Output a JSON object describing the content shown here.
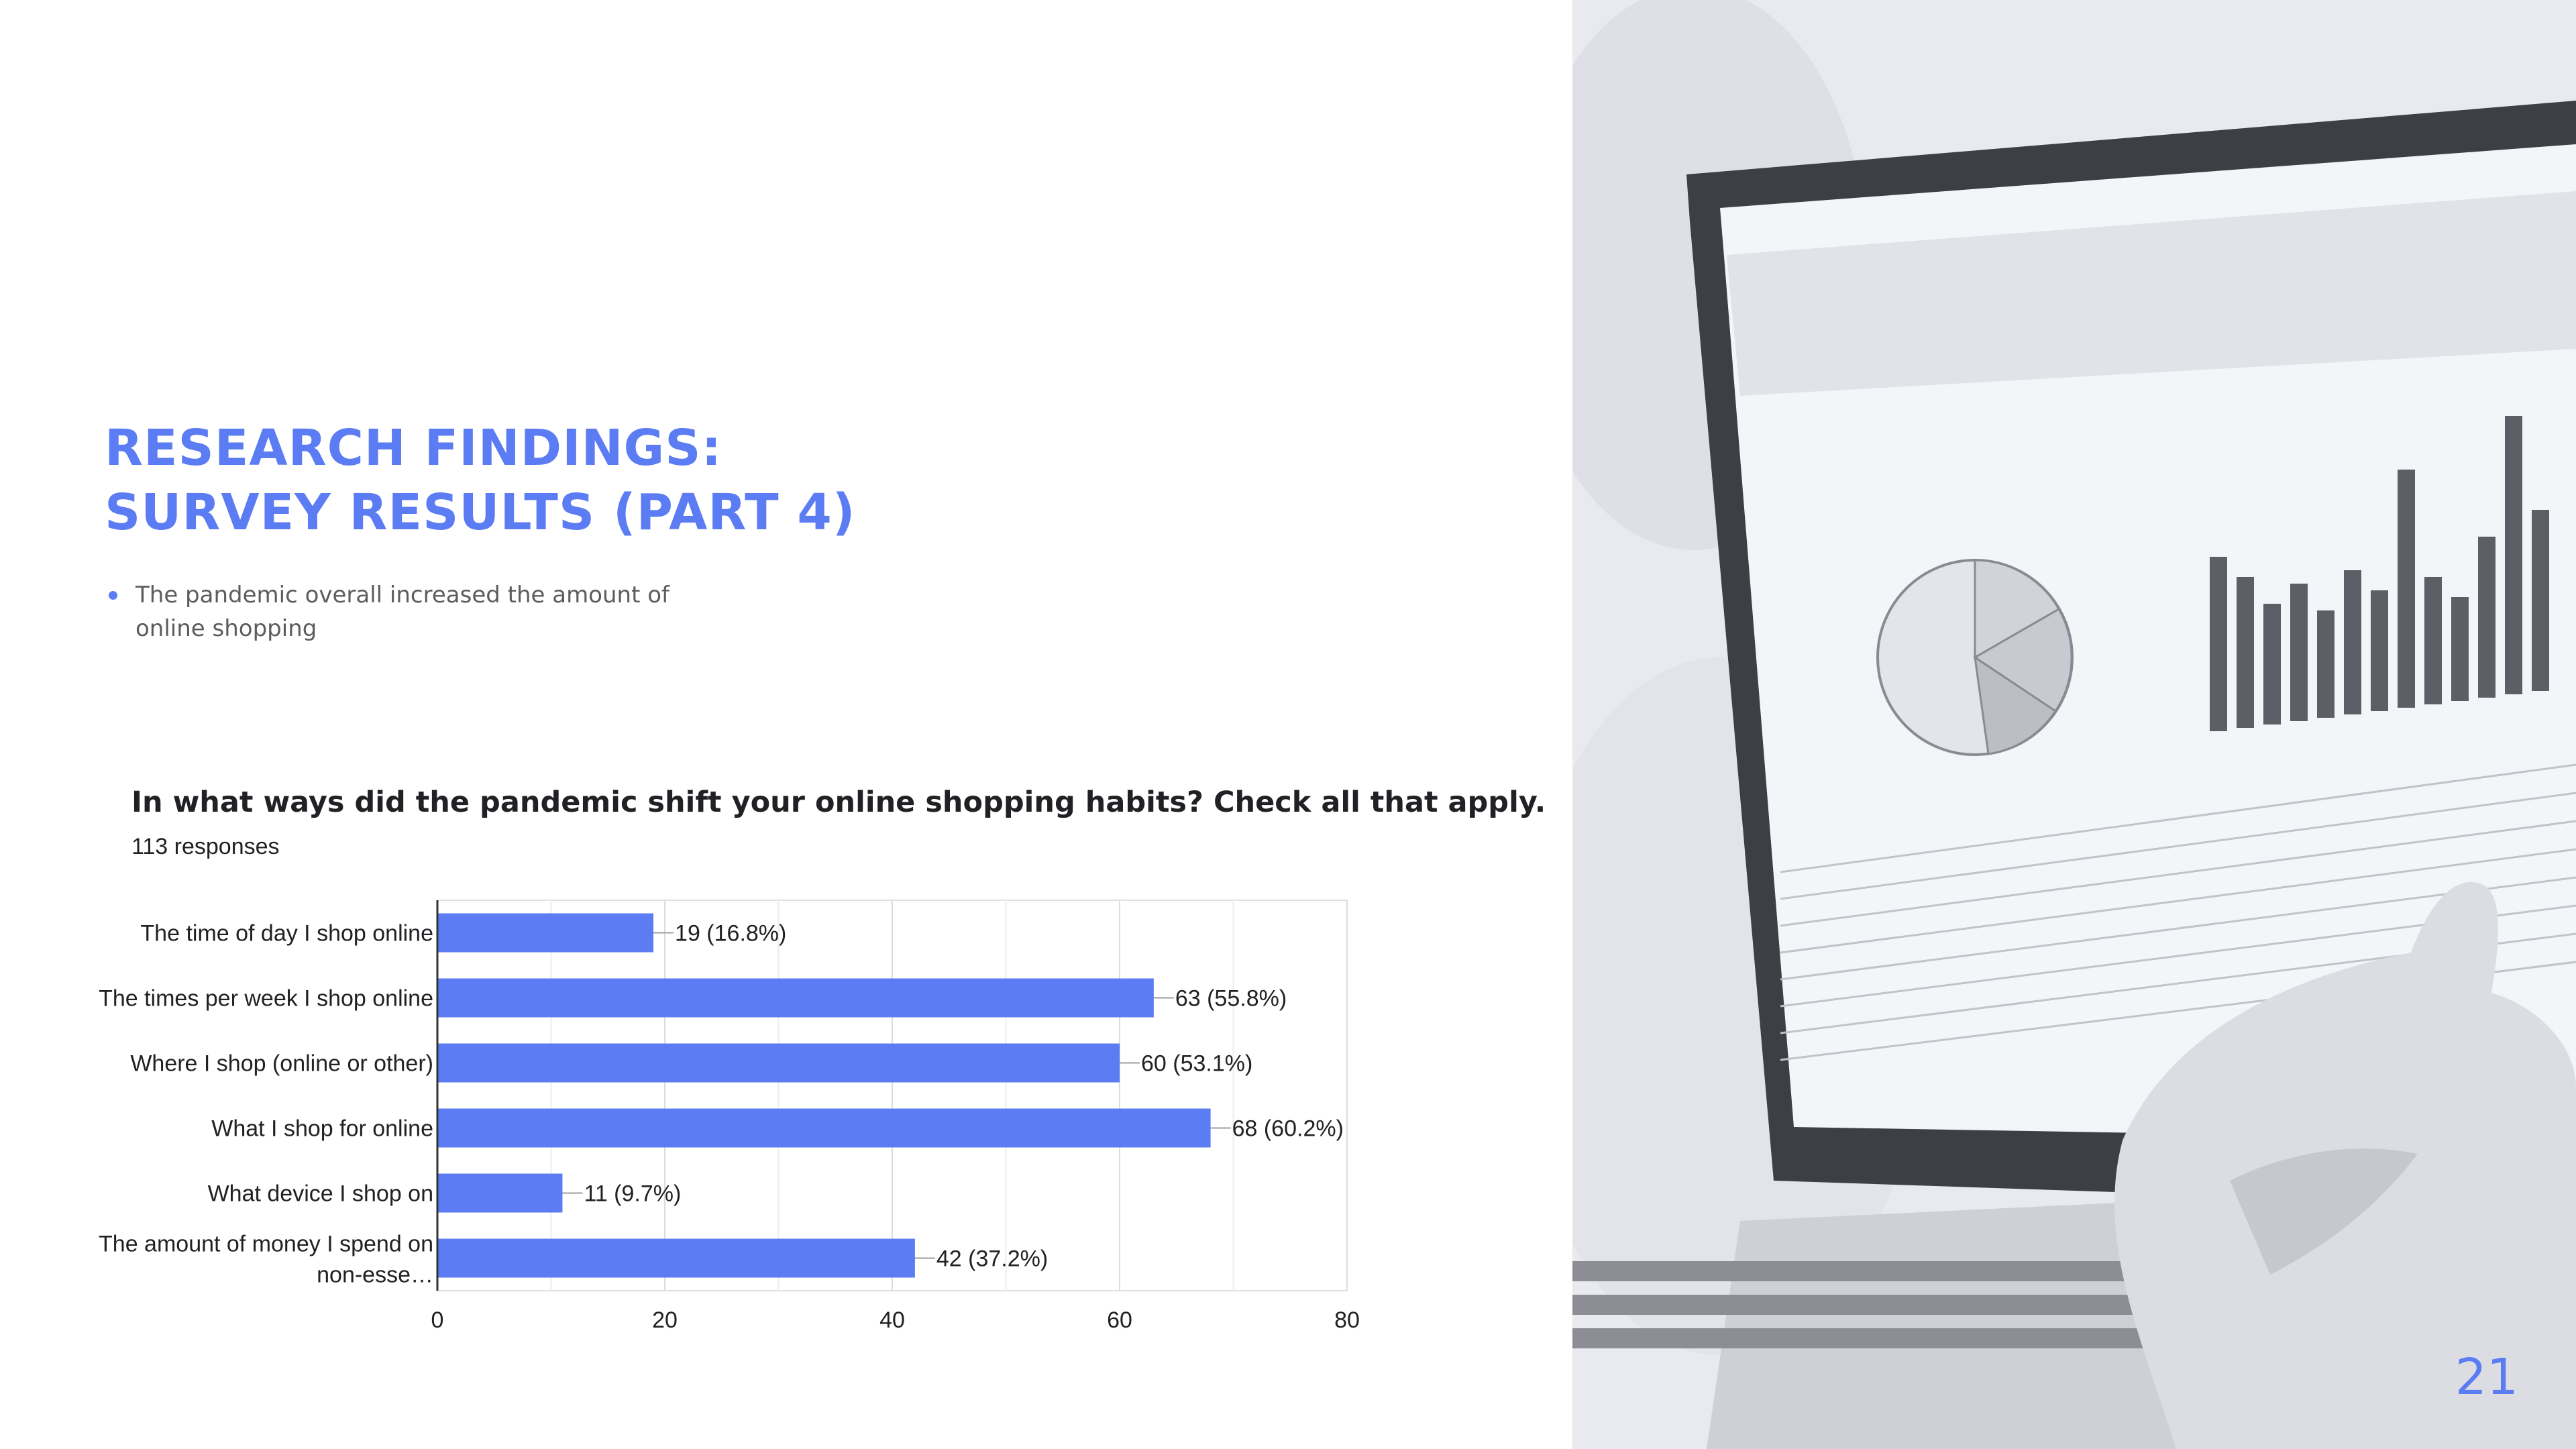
{
  "slide": {
    "title_lines": [
      "RESEARCH FINDINGS:",
      "SURVEY RESULTS (PART 4)"
    ],
    "bullets": [
      "The pandemic overall increased the amount of online shopping"
    ],
    "page_number": "21",
    "accent_color": "#5b7cf2"
  },
  "chart_data": {
    "type": "bar",
    "orientation": "horizontal",
    "title": "In what ways did the pandemic shift your online shopping habits? Check all that apply.",
    "subtitle": "113 responses",
    "categories": [
      "The time of day I shop online",
      "The times per week I shop online",
      "Where I shop (online or other)",
      "What I shop for online",
      "What device I shop on",
      "The amount of money I spend on non-esse…"
    ],
    "values": [
      19,
      63,
      60,
      68,
      11,
      42
    ],
    "value_labels": [
      "19 (16.8%)",
      "63 (55.8%)",
      "60 (53.1%)",
      "68 (60.2%)",
      "11 (9.7%)",
      "42 (37.2%)"
    ],
    "xlim": [
      0,
      80
    ],
    "xticks": [
      0,
      20,
      40,
      60,
      80
    ],
    "grid": true,
    "legend": "none",
    "bar_color": "#5b7cf2"
  }
}
